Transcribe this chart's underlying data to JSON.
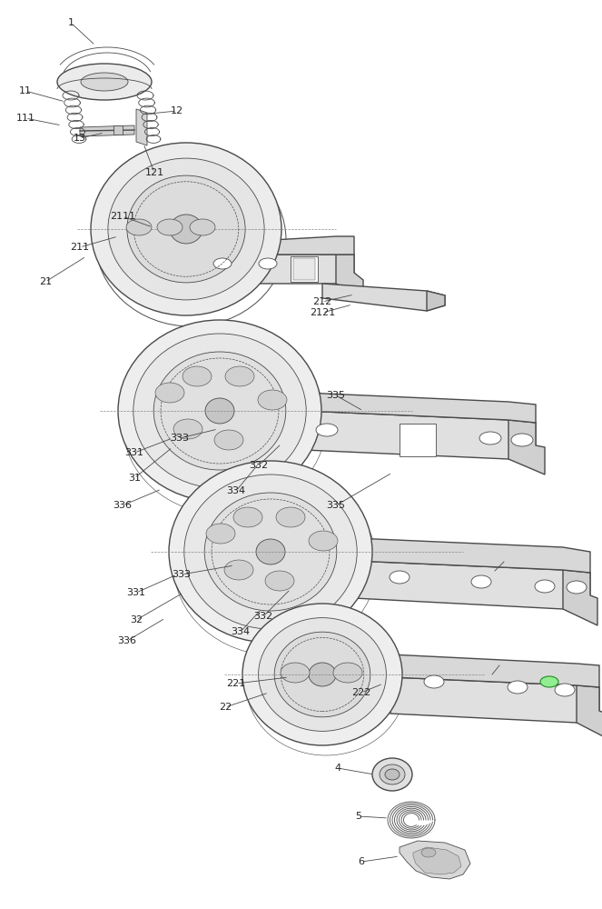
{
  "bg_color": "#ffffff",
  "line_color": "#4a4a4a",
  "label_color": "#222222",
  "fig_width": 6.63,
  "fig_height": 10.0,
  "dpi": 100
}
